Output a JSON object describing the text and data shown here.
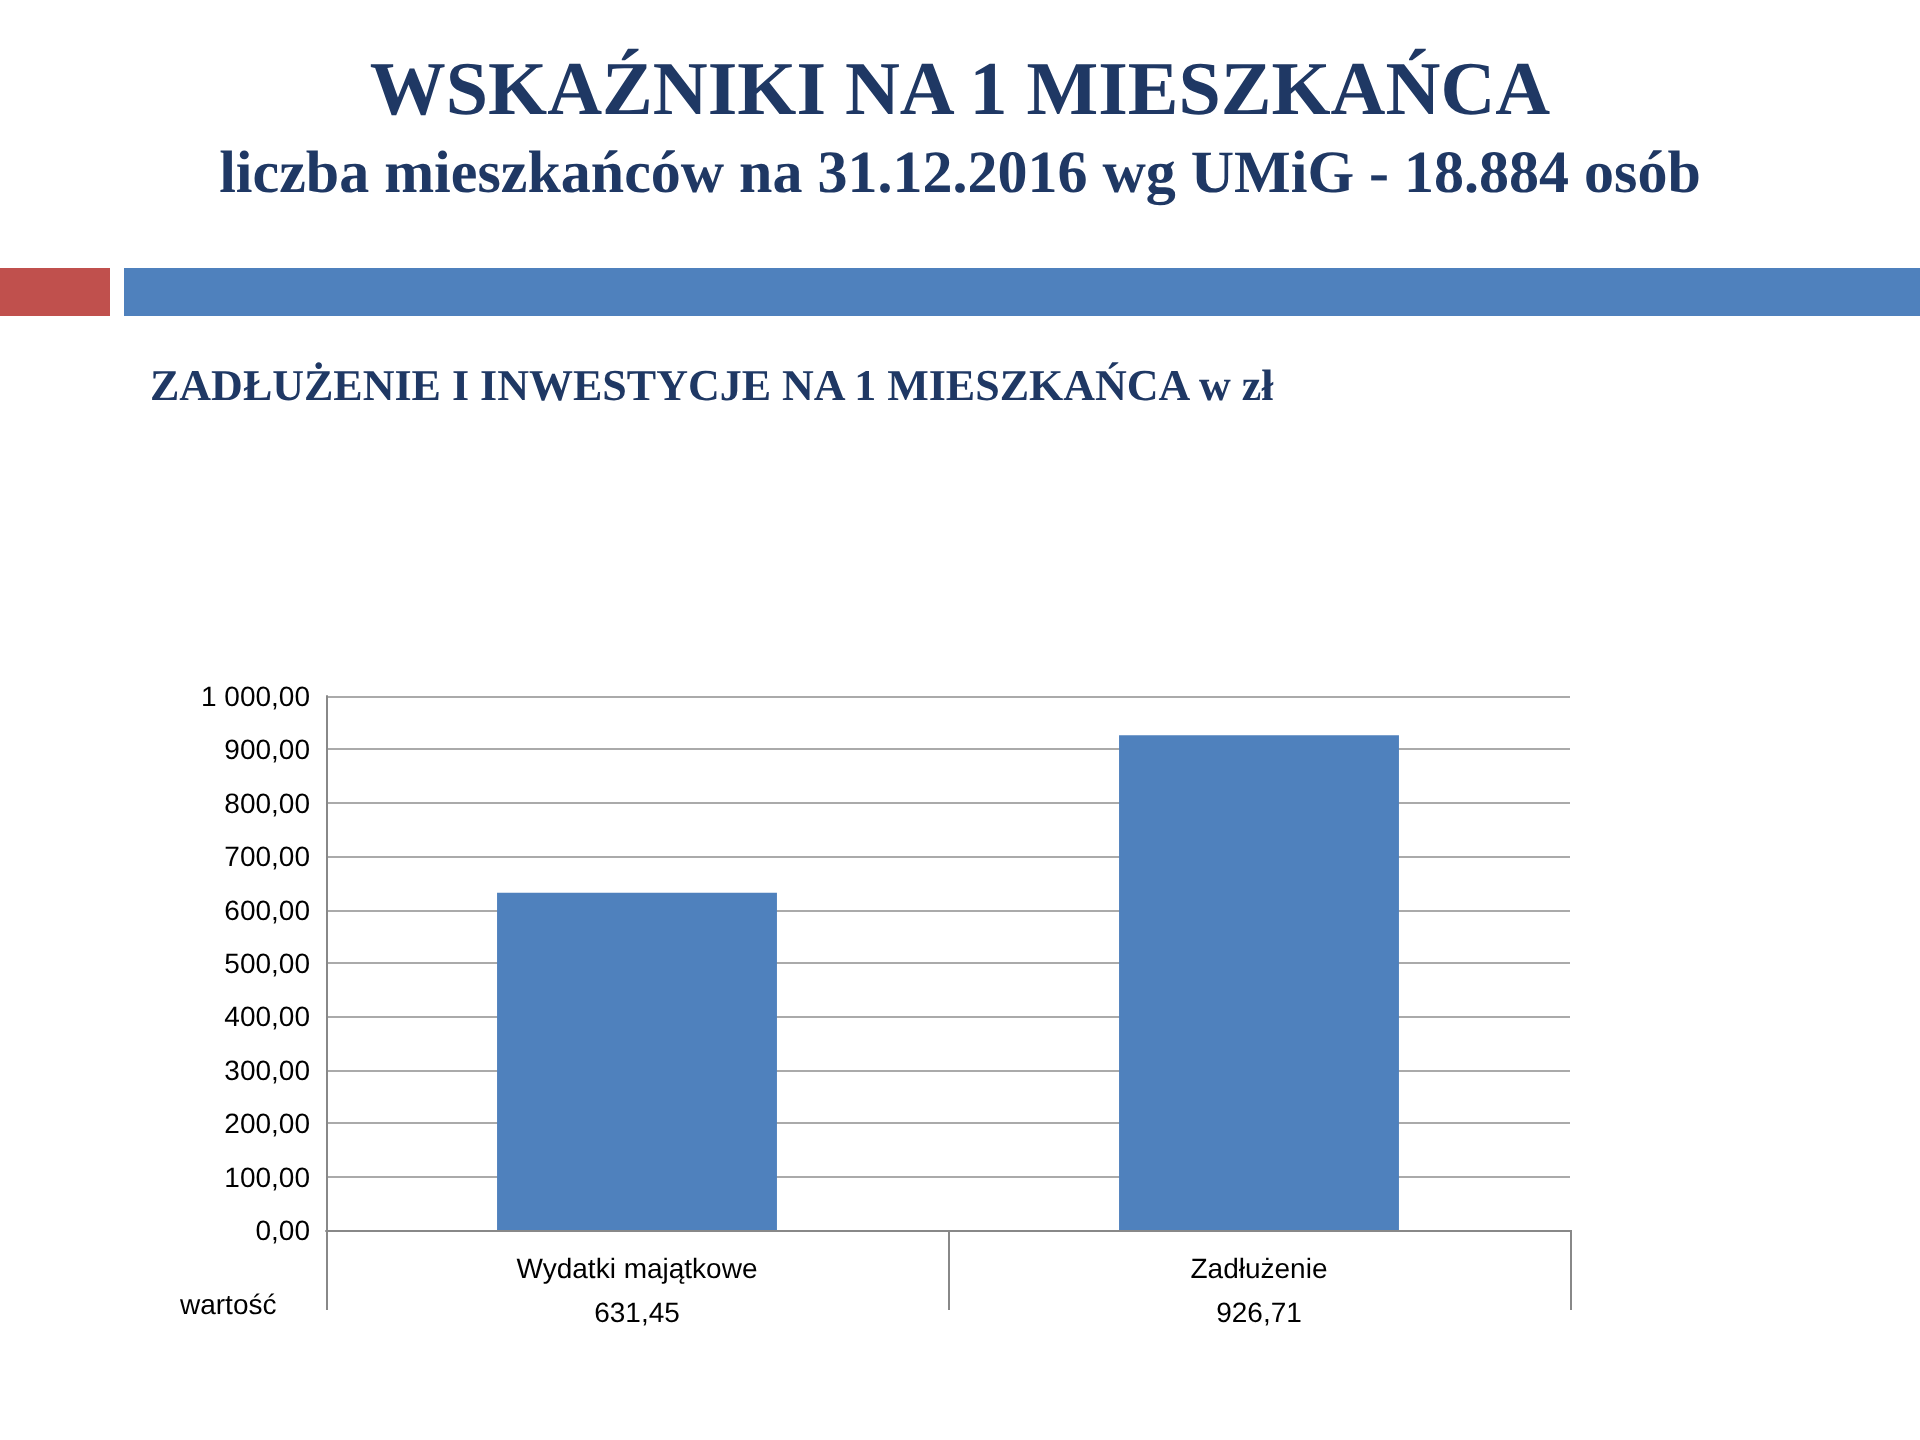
{
  "chart_data": {
    "type": "bar",
    "title": "WSKAŹNIKI NA 1 MIESZKAŃCA",
    "subtitle": "liczba mieszkańców na 31.12.2016 wg UMiG  - 18.884 osób",
    "annotations": [
      "ZADŁUŻENIE I INWESTYCJE NA 1 MIESZKAŃCA w  zł",
      "wartość"
    ],
    "categories": [
      "Wydatki majątkowe",
      "Zadłużenie"
    ],
    "values": [
      631.45,
      926.71
    ],
    "value_labels": [
      "631,45",
      "926,71"
    ],
    "color": "#4f81bd",
    "ylim": [
      0,
      1000
    ],
    "yticks": [
      {
        "value": 0,
        "label": "0,00"
      },
      {
        "value": 100,
        "label": "100,00"
      },
      {
        "value": 200,
        "label": "200,00"
      },
      {
        "value": 300,
        "label": "300,00"
      },
      {
        "value": 400,
        "label": "400,00"
      },
      {
        "value": 500,
        "label": "500,00"
      },
      {
        "value": 600,
        "label": "600,00"
      },
      {
        "value": 700,
        "label": "700,00"
      },
      {
        "value": 800,
        "label": "800,00"
      },
      {
        "value": 900,
        "label": "900,00"
      },
      {
        "value": 1000,
        "label": "1 000,00"
      }
    ],
    "grid": true
  }
}
